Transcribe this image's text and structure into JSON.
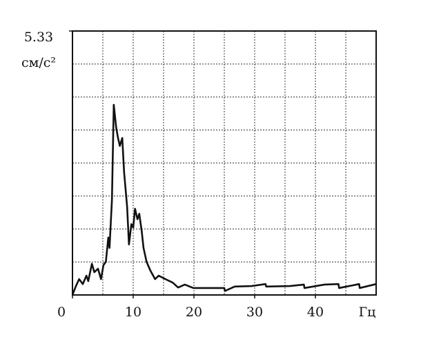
{
  "chart_data": {
    "type": "line",
    "xlabel": "Гц",
    "ylabel": "см/с²",
    "x": [
      0,
      0.57,
      1.1,
      1.7,
      2.3,
      2.6,
      3.2,
      3.6,
      4.2,
      4.7,
      5.1,
      5.5,
      5.9,
      6.1,
      6.5,
      6.8,
      7.2,
      7.5,
      7.8,
      8.2,
      8.5,
      9.0,
      9.3,
      9.7,
      10.0,
      10.3,
      10.7,
      11.0,
      11.4,
      11.7,
      12.2,
      12.8,
      13.6,
      14.2,
      15.3,
      16.5,
      17.4,
      18.5,
      19.9,
      22.2,
      25,
      25.1,
      26.7,
      29.5,
      31.8,
      31.9,
      35.8,
      38.1,
      38.2,
      41.5,
      43.8,
      43.9,
      47.2,
      47.3,
      50
    ],
    "series": [
      {
        "color": "#111111",
        "values": [
          0,
          0.18,
          0.32,
          0.22,
          0.39,
          0.28,
          0.63,
          0.46,
          0.53,
          0.32,
          0.6,
          0.67,
          1.16,
          0.95,
          1.92,
          3.84,
          3.38,
          3.17,
          3.01,
          3.17,
          2.48,
          1.78,
          1.02,
          1.43,
          1.36,
          1.74,
          1.53,
          1.64,
          1.29,
          0.95,
          0.67,
          0.5,
          0.32,
          0.39,
          0.32,
          0.25,
          0.15,
          0.21,
          0.14,
          0.14,
          0.14,
          0.08,
          0.17,
          0.18,
          0.22,
          0.17,
          0.18,
          0.21,
          0.14,
          0.21,
          0.22,
          0.14,
          0.22,
          0.14,
          0.22
        ]
      }
    ],
    "xlim": [
      0,
      50
    ],
    "xticks": [
      0,
      10,
      20,
      30,
      40
    ],
    "xgrid": [
      5,
      10,
      15,
      20,
      25,
      30,
      35,
      40,
      45
    ],
    "ylim": [
      0,
      5.33
    ],
    "yticks": [
      5.33
    ],
    "ygrid": [
      0.666,
      1.333,
      1.999,
      2.665,
      3.331,
      3.998,
      4.664
    ],
    "grid": true
  }
}
